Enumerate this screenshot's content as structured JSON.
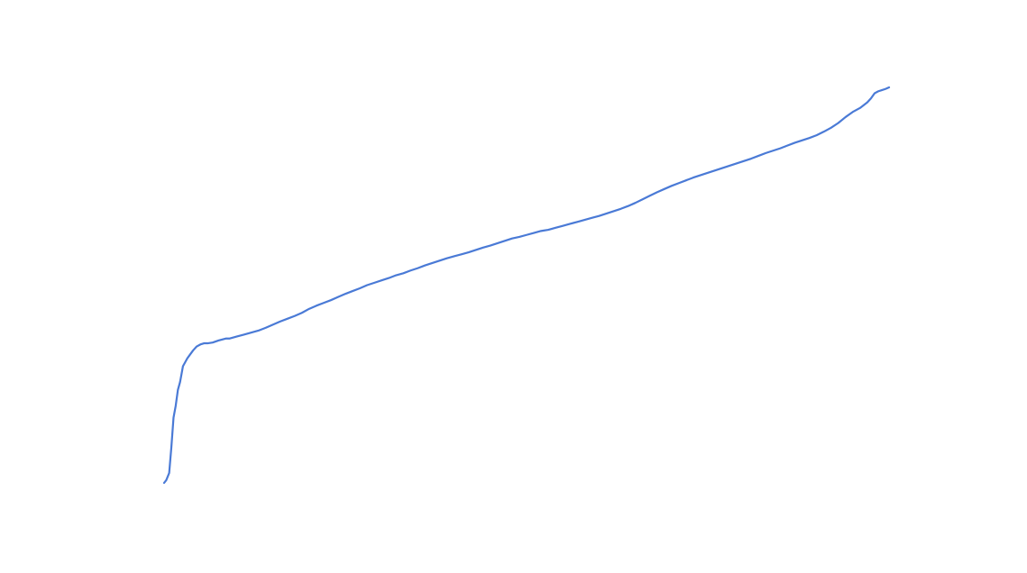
{
  "chart_data": {
    "type": "line",
    "title": "",
    "xlabel": "",
    "ylabel": "",
    "grid": false,
    "legend": "none",
    "axes_visible": false,
    "xlim": [
      0,
      1
    ],
    "ylim": [
      0,
      1
    ],
    "series": [
      {
        "color": "#4a7ad6",
        "x": [
          0.0,
          0.003,
          0.007,
          0.01,
          0.013,
          0.016,
          0.019,
          0.022,
          0.024,
          0.026,
          0.029,
          0.032,
          0.036,
          0.04,
          0.045,
          0.05,
          0.055,
          0.06,
          0.067,
          0.075,
          0.085,
          0.09,
          0.1,
          0.11,
          0.12,
          0.13,
          0.14,
          0.15,
          0.16,
          0.17,
          0.18,
          0.19,
          0.2,
          0.21,
          0.22,
          0.23,
          0.24,
          0.25,
          0.26,
          0.27,
          0.28,
          0.29,
          0.3,
          0.31,
          0.32,
          0.33,
          0.34,
          0.35,
          0.36,
          0.37,
          0.38,
          0.39,
          0.4,
          0.41,
          0.42,
          0.43,
          0.44,
          0.45,
          0.46,
          0.47,
          0.48,
          0.49,
          0.5,
          0.51,
          0.52,
          0.53,
          0.54,
          0.55,
          0.56,
          0.57,
          0.58,
          0.59,
          0.6,
          0.61,
          0.62,
          0.63,
          0.64,
          0.65,
          0.66,
          0.67,
          0.68,
          0.69,
          0.7,
          0.71,
          0.72,
          0.73,
          0.74,
          0.75,
          0.76,
          0.77,
          0.78,
          0.79,
          0.8,
          0.81,
          0.82,
          0.83,
          0.84,
          0.85,
          0.86,
          0.87,
          0.88,
          0.89,
          0.9,
          0.91,
          0.92,
          0.93,
          0.94,
          0.95,
          0.96,
          0.97,
          0.975,
          0.98,
          0.985,
          0.99,
          0.995,
          1.0
        ],
        "y": [
          0.0,
          0.007,
          0.025,
          0.09,
          0.165,
          0.195,
          0.235,
          0.255,
          0.275,
          0.295,
          0.305,
          0.315,
          0.325,
          0.335,
          0.345,
          0.35,
          0.353,
          0.353,
          0.355,
          0.36,
          0.365,
          0.365,
          0.37,
          0.375,
          0.38,
          0.385,
          0.392,
          0.4,
          0.408,
          0.415,
          0.422,
          0.43,
          0.44,
          0.448,
          0.455,
          0.462,
          0.47,
          0.478,
          0.485,
          0.492,
          0.5,
          0.506,
          0.512,
          0.518,
          0.525,
          0.53,
          0.537,
          0.543,
          0.55,
          0.556,
          0.562,
          0.568,
          0.573,
          0.578,
          0.583,
          0.589,
          0.595,
          0.6,
          0.606,
          0.612,
          0.618,
          0.622,
          0.627,
          0.632,
          0.637,
          0.64,
          0.645,
          0.65,
          0.655,
          0.66,
          0.665,
          0.67,
          0.675,
          0.681,
          0.687,
          0.693,
          0.7,
          0.708,
          0.717,
          0.726,
          0.735,
          0.743,
          0.751,
          0.758,
          0.765,
          0.772,
          0.778,
          0.784,
          0.79,
          0.796,
          0.802,
          0.808,
          0.814,
          0.82,
          0.827,
          0.834,
          0.84,
          0.846,
          0.853,
          0.86,
          0.866,
          0.872,
          0.879,
          0.888,
          0.898,
          0.91,
          0.925,
          0.938,
          0.948,
          0.962,
          0.972,
          0.985,
          0.99,
          0.993,
          0.996,
          1.0
        ]
      }
    ]
  }
}
